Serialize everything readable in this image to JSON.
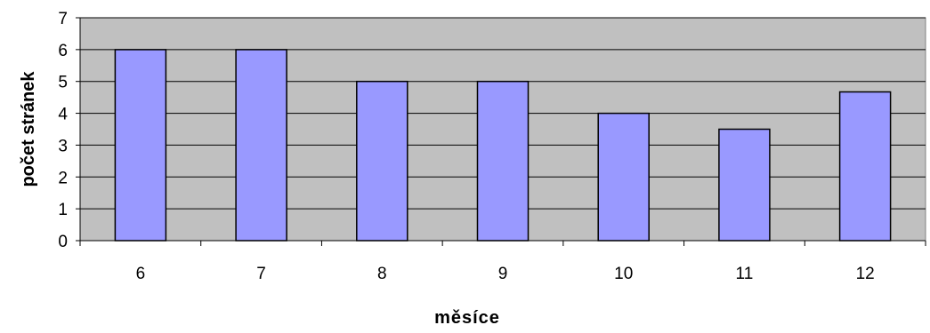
{
  "chart_data": {
    "type": "bar",
    "title": "",
    "xlabel": "měsíce",
    "ylabel": "počet stránek",
    "categories": [
      "6",
      "7",
      "8",
      "9",
      "10",
      "11",
      "12"
    ],
    "values": [
      6,
      6,
      5,
      5,
      4,
      3.5,
      4.67
    ],
    "ylim": [
      0,
      7
    ],
    "yticks": [
      "0",
      "1",
      "2",
      "3",
      "4",
      "5",
      "6",
      "7"
    ],
    "grid": true,
    "legend": "none",
    "colors": {
      "bar_fill": "#9999ff",
      "bar_stroke": "#000000",
      "plot_background": "#c0c0c0",
      "gridline": "#000000"
    }
  }
}
